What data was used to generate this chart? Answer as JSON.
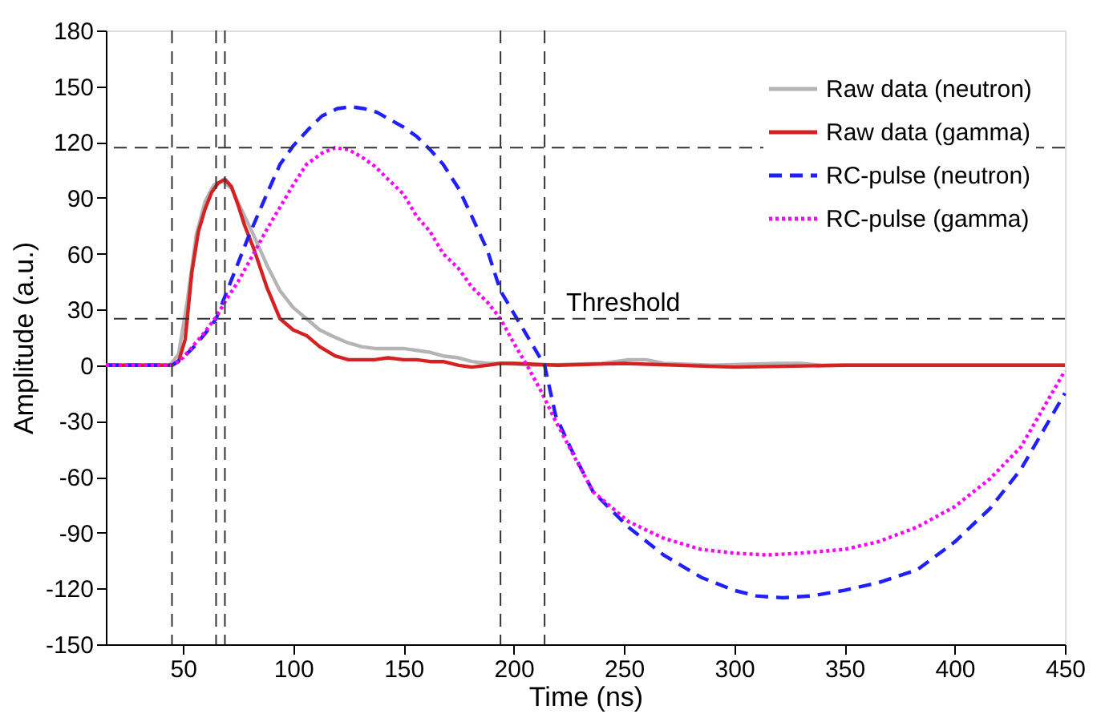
{
  "chart_data": {
    "type": "line",
    "xlabel": "Time (ns)",
    "ylabel": "Amplitude (a.u.)",
    "xlim": [
      15,
      450
    ],
    "ylim": [
      -150,
      180
    ],
    "xticks": [
      50,
      100,
      150,
      200,
      250,
      300,
      350,
      400,
      450
    ],
    "yticks": [
      -150,
      -120,
      -90,
      -60,
      -30,
      0,
      30,
      60,
      90,
      120,
      150,
      180
    ],
    "grid": false,
    "legend": "top right",
    "marker": "none",
    "series": [
      {
        "name": "Raw data (neutron)",
        "color": "#b4b4b4",
        "line_style": "solid",
        "x": [
          15,
          30,
          44,
          48,
          52,
          56,
          60,
          64,
          68,
          72,
          76,
          82,
          88,
          94,
          100,
          106,
          112,
          119,
          125,
          131,
          137,
          143,
          150,
          156,
          162,
          168,
          175,
          181,
          188,
          194,
          210,
          240,
          252,
          260,
          268,
          290,
          320,
          330,
          340,
          380,
          450
        ],
        "values": [
          0,
          0,
          0,
          6,
          35,
          70,
          88,
          97,
          99,
          95,
          85,
          70,
          54,
          40,
          31,
          25,
          19,
          15,
          12,
          10,
          9,
          9,
          9,
          8,
          7,
          5,
          4,
          2,
          1,
          1,
          0,
          1,
          3,
          3,
          1,
          0,
          1,
          1,
          0,
          0,
          0
        ]
      },
      {
        "name": "Raw data (gamma)",
        "color": "#d42222",
        "line_style": "solid",
        "x": [
          15,
          30,
          45,
          48,
          51,
          54,
          57,
          60,
          63,
          66,
          69,
          72,
          75,
          78,
          82,
          88,
          94,
          100,
          106,
          112,
          119,
          125,
          131,
          137,
          143,
          150,
          156,
          162,
          168,
          175,
          181,
          188,
          194,
          200,
          220,
          250,
          300,
          350,
          400,
          450
        ],
        "values": [
          0,
          0,
          0,
          2,
          14,
          50,
          72,
          84,
          93,
          98,
          100,
          96,
          86,
          75,
          63,
          42,
          25,
          19,
          16,
          10,
          5,
          3,
          3,
          3,
          4,
          3,
          3,
          2,
          2,
          0,
          -1,
          0,
          1,
          1,
          0,
          1,
          -1,
          0,
          0,
          0
        ]
      },
      {
        "name": "RC-pulse (neutron)",
        "color": "#1f1fff",
        "line_style": "dashed",
        "x": [
          15,
          30,
          45,
          50,
          55,
          60,
          65,
          70,
          75,
          80,
          88,
          94,
          100,
          107,
          113,
          120,
          126,
          132,
          138,
          144,
          150,
          156,
          162,
          168,
          175,
          181,
          188,
          194,
          200,
          207,
          214,
          219,
          226,
          236,
          252,
          268,
          285,
          300,
          310,
          322,
          335,
          350,
          365,
          383,
          400,
          416,
          430,
          450
        ],
        "values": [
          0,
          0,
          0,
          4,
          10,
          17,
          25,
          40,
          55,
          70,
          92,
          108,
          118,
          127,
          134,
          138,
          139,
          138,
          136,
          132,
          128,
          123,
          116,
          108,
          95,
          80,
          62,
          40,
          28,
          14,
          0,
          -27,
          -45,
          -68,
          -87,
          -102,
          -114,
          -121,
          -124,
          -125,
          -124,
          -121,
          -117,
          -110,
          -95,
          -77,
          -56,
          -15
        ]
      },
      {
        "name": "RC-pulse (gamma)",
        "color": "#ff00ff",
        "line_style": "dotted",
        "x": [
          15,
          30,
          45,
          50,
          55,
          60,
          65,
          70,
          75,
          82,
          88,
          94,
          100,
          106,
          113,
          119,
          125,
          131,
          137,
          143,
          150,
          156,
          162,
          168,
          175,
          181,
          188,
          194,
          200,
          206,
          212,
          219,
          227,
          236,
          252,
          268,
          285,
          300,
          315,
          330,
          350,
          365,
          383,
          400,
          416,
          430,
          450
        ],
        "values": [
          0,
          0,
          0,
          4,
          11,
          18,
          26,
          36,
          45,
          60,
          73,
          85,
          97,
          108,
          114,
          117,
          116,
          112,
          107,
          100,
          92,
          80,
          72,
          60,
          52,
          42,
          34,
          25,
          12,
          0,
          -13,
          -30,
          -48,
          -68,
          -84,
          -93,
          -99,
          -101,
          -102,
          -101,
          -99,
          -95,
          -87,
          -76,
          -61,
          -44,
          -3
        ]
      }
    ],
    "ref_lines": [
      {
        "axis": "y",
        "value": 25,
        "label": "Threshold",
        "line_style": "dashed",
        "color": "#333333"
      },
      {
        "axis": "y",
        "value": 117,
        "line_style": "dashed",
        "color": "#333333"
      },
      {
        "axis": "x",
        "value": 45,
        "line_style": "dashed",
        "color": "#333333"
      },
      {
        "axis": "x",
        "value": 65,
        "line_style": "dashed",
        "color": "#333333"
      },
      {
        "axis": "x",
        "value": 69,
        "line_style": "dashed",
        "color": "#333333"
      },
      {
        "axis": "x",
        "value": 194,
        "line_style": "dashed",
        "color": "#333333"
      },
      {
        "axis": "x",
        "value": 214,
        "line_style": "dashed",
        "color": "#333333"
      }
    ]
  }
}
